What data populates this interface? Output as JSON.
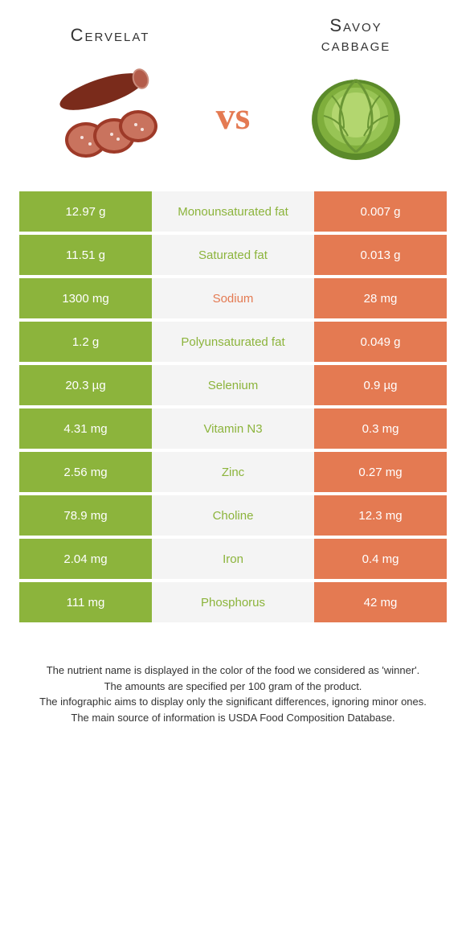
{
  "header": {
    "left_title": "Cervelat",
    "right_title_line1": "Savoy",
    "right_title_line2": "cabbage",
    "vs": "vs"
  },
  "colors": {
    "left": "#8CB43C",
    "right": "#E47A52",
    "mid_bg": "#F4F4F4"
  },
  "rows": [
    {
      "left": "12.97 g",
      "label": "Monounsaturated fat",
      "right": "0.007 g",
      "winner": "left"
    },
    {
      "left": "11.51 g",
      "label": "Saturated fat",
      "right": "0.013 g",
      "winner": "left"
    },
    {
      "left": "1300 mg",
      "label": "Sodium",
      "right": "28 mg",
      "winner": "right"
    },
    {
      "left": "1.2 g",
      "label": "Polyunsaturated fat",
      "right": "0.049 g",
      "winner": "left"
    },
    {
      "left": "20.3 µg",
      "label": "Selenium",
      "right": "0.9 µg",
      "winner": "left"
    },
    {
      "left": "4.31 mg",
      "label": "Vitamin N3",
      "right": "0.3 mg",
      "winner": "left"
    },
    {
      "left": "2.56 mg",
      "label": "Zinc",
      "right": "0.27 mg",
      "winner": "left"
    },
    {
      "left": "78.9 mg",
      "label": "Choline",
      "right": "12.3 mg",
      "winner": "left"
    },
    {
      "left": "2.04 mg",
      "label": "Iron",
      "right": "0.4 mg",
      "winner": "left"
    },
    {
      "left": "111 mg",
      "label": "Phosphorus",
      "right": "42 mg",
      "winner": "left"
    }
  ],
  "footer": {
    "line1": "The nutrient name is displayed in the color of the food we considered as 'winner'.",
    "line2": "The amounts are specified per 100 gram of the product.",
    "line3": "The infographic aims to display only the significant differences, ignoring minor ones.",
    "line4": "The main source of information is USDA Food Composition Database."
  }
}
